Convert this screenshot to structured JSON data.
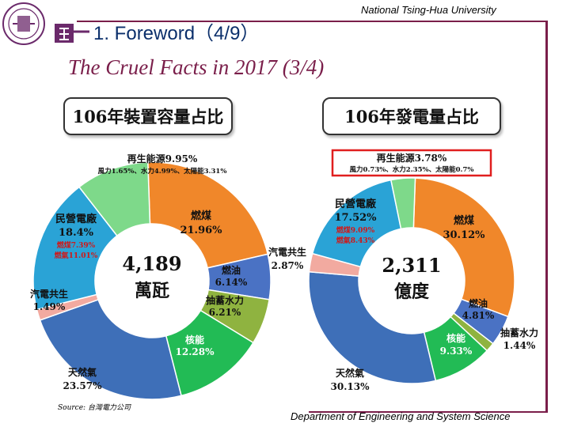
{
  "header": {
    "university": "National Tsing-Hua University",
    "section_title": "1. Foreword（4/9）",
    "subtitle": "The Cruel Facts in 2017 (3/4)"
  },
  "footer": {
    "source": "Source: 台灣電力公司",
    "department": "Department of Engineering and System Science"
  },
  "chart_data": [
    {
      "type": "pie",
      "title": "106年裝置容量占比",
      "center_value": "4,189",
      "center_unit": "萬瓩",
      "slices": [
        {
          "name": "燃煤",
          "value": 21.96,
          "color": "#f0872a"
        },
        {
          "name": "燃油",
          "value": 6.14,
          "color": "#4a72c4"
        },
        {
          "name": "抽蓄水力",
          "value": 6.21,
          "color": "#8fb340"
        },
        {
          "name": "核能",
          "value": 12.28,
          "color": "#22bb55"
        },
        {
          "name": "天然氣",
          "value": 23.57,
          "color": "#3e6fb8"
        },
        {
          "name": "汽電共生",
          "value": 1.49,
          "color": "#f2aaa0"
        },
        {
          "name": "民營電廠",
          "value": 18.4,
          "color": "#2aa3d6"
        },
        {
          "name": "再生能源",
          "value": 9.95,
          "color": "#7ed98a"
        }
      ],
      "labels": [
        {
          "name": "再生能源9.95%",
          "detail": "風力1.65%、水力4.99%、太陽能3.31%"
        },
        {
          "name": "燃煤",
          "value": "21.96%"
        },
        {
          "name": "燃油",
          "value": "6.14%"
        },
        {
          "name": "抽蓄水力",
          "value": "6.21%"
        },
        {
          "name": "核能",
          "value": "12.28%"
        },
        {
          "name": "天然氣",
          "value": "23.57%"
        },
        {
          "name": "汽電共生",
          "value": "1.49%"
        },
        {
          "name": "民營電廠",
          "value": "18.4%",
          "sub1": "燃煤7.39%",
          "sub2": "燃氣11.01%"
        }
      ]
    },
    {
      "type": "pie",
      "title": "106年發電量占比",
      "center_value": "2,311",
      "center_unit": "億度",
      "slices": [
        {
          "name": "燃煤",
          "value": 30.12,
          "color": "#f0872a"
        },
        {
          "name": "燃油",
          "value": 4.81,
          "color": "#4a72c4"
        },
        {
          "name": "抽蓄水力",
          "value": 1.44,
          "color": "#8fb340"
        },
        {
          "name": "核能",
          "value": 9.33,
          "color": "#22bb55"
        },
        {
          "name": "天然氣",
          "value": 30.13,
          "color": "#3e6fb8"
        },
        {
          "name": "汽電共生",
          "value": 2.87,
          "color": "#f2aaa0"
        },
        {
          "name": "民營電廠",
          "value": 17.52,
          "color": "#2aa3d6"
        },
        {
          "name": "再生能源",
          "value": 3.78,
          "color": "#7ed98a"
        }
      ],
      "labels": [
        {
          "name": "再生能源3.78%",
          "detail": "風力0.73%、水力2.35%、太陽能0.7%"
        },
        {
          "name": "燃煤",
          "value": "30.12%"
        },
        {
          "name": "燃油",
          "value": "4.81%"
        },
        {
          "name": "抽蓄水力",
          "value": "1.44%"
        },
        {
          "name": "核能",
          "value": "9.33%"
        },
        {
          "name": "天然氣",
          "value": "30.13%"
        },
        {
          "name": "汽電共生",
          "value": "2.87%"
        },
        {
          "name": "民營電廠",
          "value": "17.52%",
          "sub1": "燃煤9.09%",
          "sub2": "燃氣8.43%"
        }
      ]
    }
  ]
}
